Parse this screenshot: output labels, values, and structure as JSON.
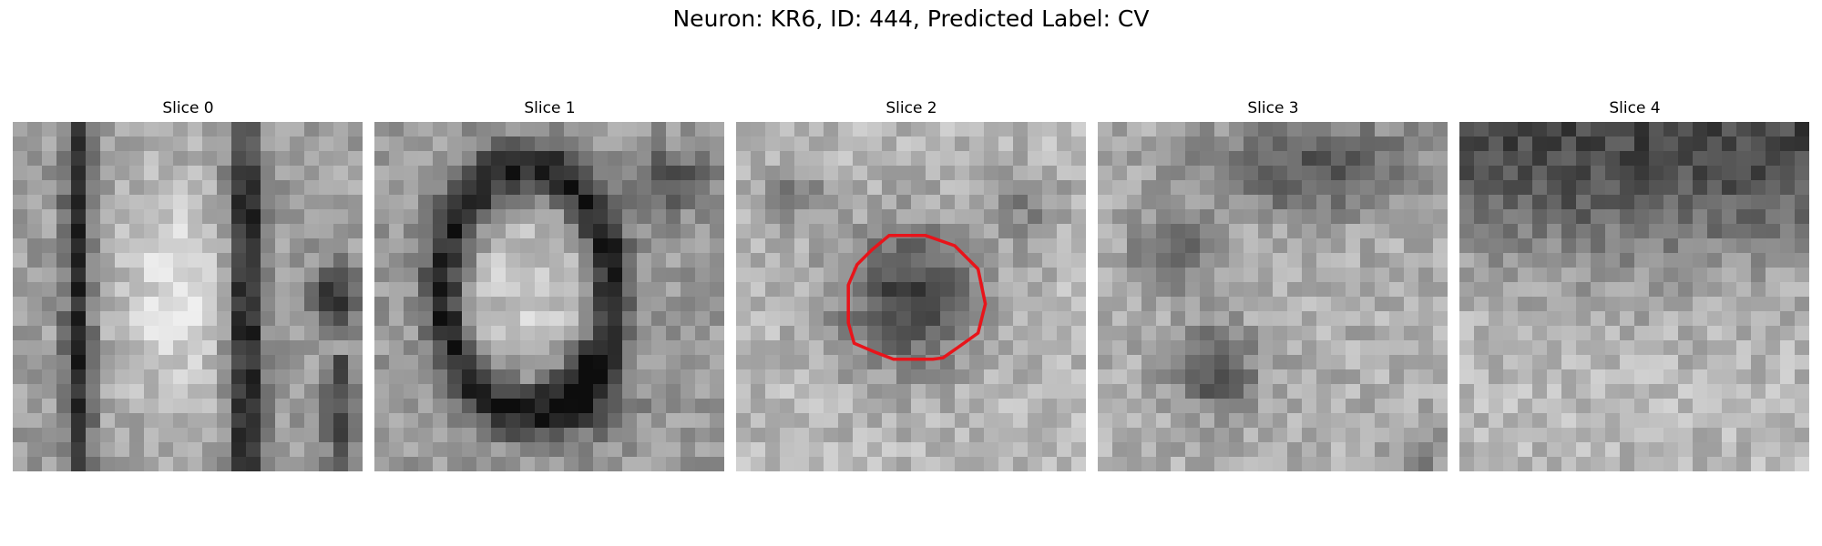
{
  "figure": {
    "title": "Neuron: KR6, ID: 444, Predicted Label: CV",
    "slices": [
      {
        "label": "Slice 0"
      },
      {
        "label": "Slice 1"
      },
      {
        "label": "Slice 2",
        "has_contour": true
      },
      {
        "label": "Slice 3"
      },
      {
        "label": "Slice 4"
      }
    ],
    "contour_color": "#e8141a"
  }
}
